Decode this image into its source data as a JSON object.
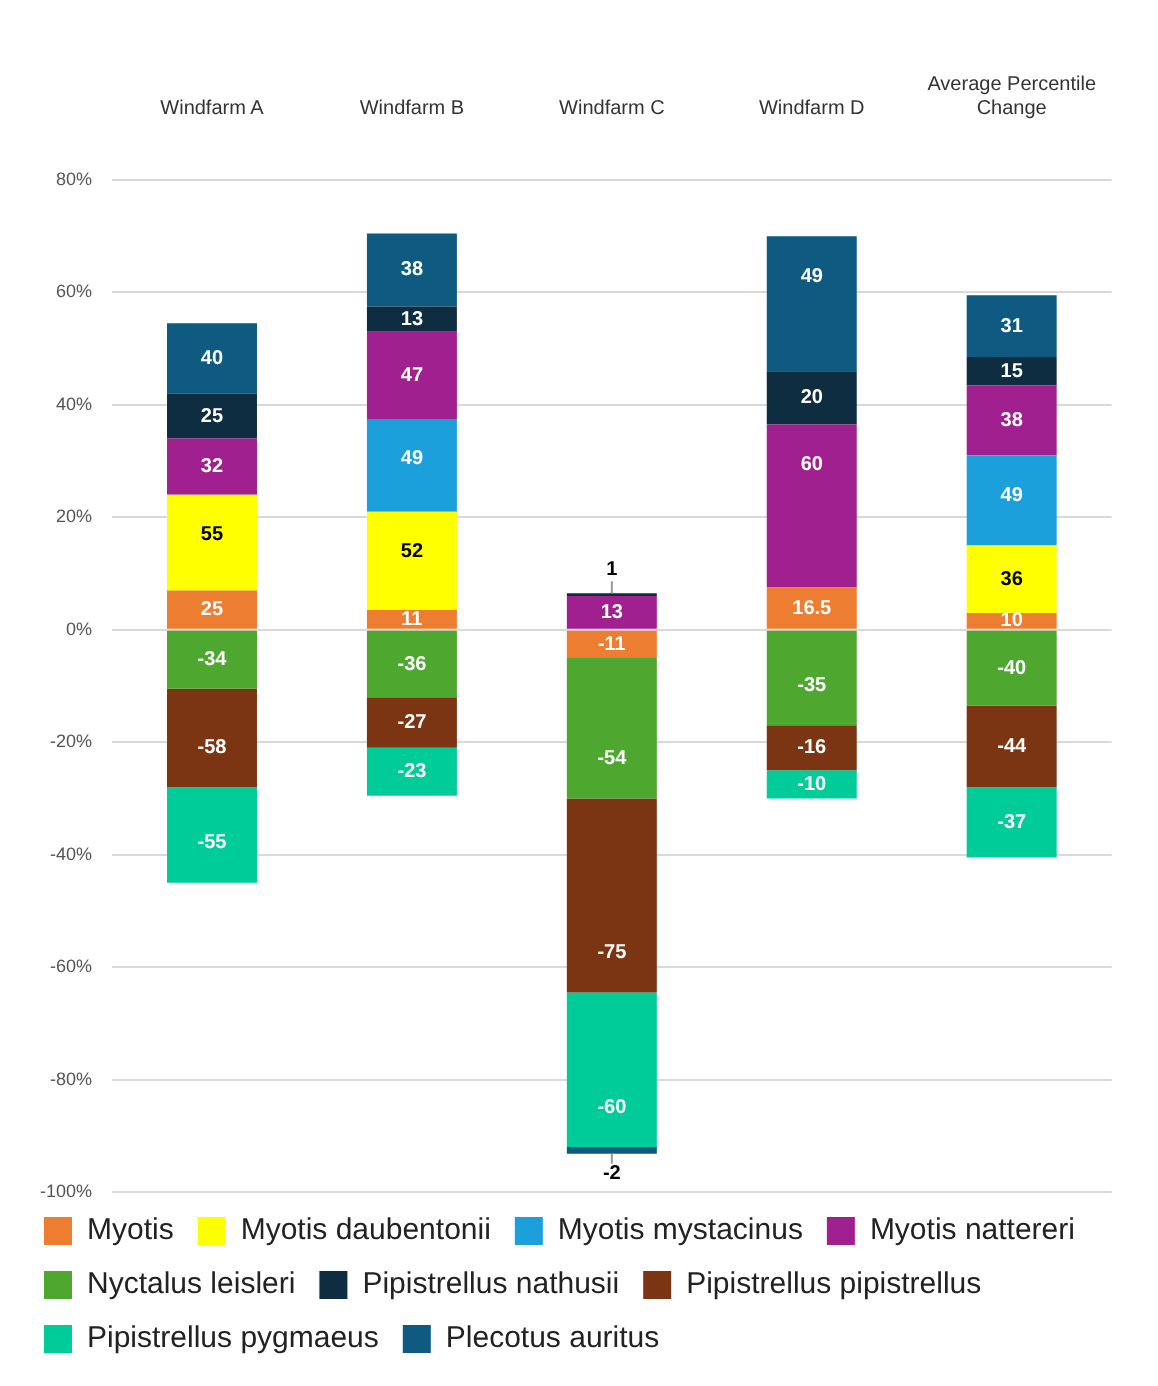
{
  "chart_data": {
    "type": "bar",
    "stacked": true,
    "categories": [
      "Windfarm A",
      "Windfarm B",
      "Windfarm C",
      "Windfarm D",
      "Average Percentile Change"
    ],
    "ylim": [
      -100,
      80
    ],
    "yticks": [
      {
        "value": -100,
        "label": "-100%"
      },
      {
        "value": -80,
        "label": "-80%"
      },
      {
        "value": -60,
        "label": "-60%"
      },
      {
        "value": -40,
        "label": "-40%"
      },
      {
        "value": -20,
        "label": "-20%"
      },
      {
        "value": 0,
        "label": "0%"
      },
      {
        "value": 20,
        "label": "20%"
      },
      {
        "value": 40,
        "label": "40%"
      },
      {
        "value": 60,
        "label": "60%"
      },
      {
        "value": 80,
        "label": "80%"
      }
    ],
    "grid": "y",
    "legend": "bottom",
    "series": [
      {
        "name": "Myotis",
        "color": "#ed7d31",
        "values": [
          7,
          3.5,
          -5,
          7.5,
          3
        ]
      },
      {
        "name": "Myotis daubentonii",
        "color": "#ffff00",
        "values": [
          17,
          17.5,
          null,
          null,
          12
        ]
      },
      {
        "name": "Myotis mystacinus",
        "color": "#1ca0dc",
        "values": [
          null,
          16.5,
          null,
          null,
          16
        ]
      },
      {
        "name": "Myotis nattereri",
        "color": "#a0208f",
        "values": [
          10,
          15.5,
          6,
          29,
          12.5
        ]
      },
      {
        "name": "Nyctalus leisleri",
        "color": "#4ea72e",
        "values": [
          -10.5,
          -12,
          -25,
          -17,
          -13.5
        ]
      },
      {
        "name": "Pipistrellus nathusii",
        "color": "#0e2d40",
        "values": [
          8,
          4.5,
          0.5,
          9.5,
          5
        ]
      },
      {
        "name": "Pipistrellus pipistrellus",
        "color": "#7b3512",
        "values": [
          -17.5,
          -9,
          -34.5,
          -8,
          -14.5
        ]
      },
      {
        "name": "Pipistrellus pygmaeus",
        "color": "#00cc99",
        "values": [
          -17,
          -8.5,
          -27.5,
          -5,
          -12.5
        ]
      },
      {
        "name": "Plecotus auritus",
        "color": "#0f5a80",
        "values": [
          12.5,
          13,
          -1.2,
          24,
          11
        ]
      }
    ],
    "annotations": [
      {
        "text": "25",
        "x": "Windfarm A",
        "y": 7
      },
      {
        "text": "55",
        "x": "Windfarm A",
        "y": 24
      },
      {
        "text": "32",
        "x": "Windfarm A",
        "y": 34
      },
      {
        "text": "25",
        "x": "Windfarm A",
        "y": 42
      },
      {
        "text": "40",
        "x": "Windfarm A",
        "y": 54.5
      },
      {
        "text": "-34",
        "x": "Windfarm A",
        "y": -10.5
      },
      {
        "text": "-58",
        "x": "Windfarm A",
        "y": -28
      },
      {
        "text": "-55",
        "x": "Windfarm A",
        "y": -45
      },
      {
        "text": "11",
        "x": "Windfarm B",
        "y": 3.5
      },
      {
        "text": "52",
        "x": "Windfarm B",
        "y": 21
      },
      {
        "text": "49",
        "x": "Windfarm B",
        "y": 37.5
      },
      {
        "text": "47",
        "x": "Windfarm B",
        "y": 53
      },
      {
        "text": "13",
        "x": "Windfarm B",
        "y": 57.5
      },
      {
        "text": "38",
        "x": "Windfarm B",
        "y": 70.5
      },
      {
        "text": "-36",
        "x": "Windfarm B",
        "y": -12
      },
      {
        "text": "-27",
        "x": "Windfarm B",
        "y": -21
      },
      {
        "text": "-23",
        "x": "Windfarm B",
        "y": -29.5
      },
      {
        "text": "13",
        "x": "Windfarm C",
        "y": 6
      },
      {
        "text": "1",
        "x": "Windfarm C",
        "y": 6.5
      },
      {
        "text": "-11",
        "x": "Windfarm C",
        "y": -5
      },
      {
        "text": "-54",
        "x": "Windfarm C",
        "y": -30
      },
      {
        "text": "-75",
        "x": "Windfarm C",
        "y": -64.5
      },
      {
        "text": "-60",
        "x": "Windfarm C",
        "y": -92
      },
      {
        "text": "-2",
        "x": "Windfarm C",
        "y": -93.2
      },
      {
        "text": "16.5",
        "x": "Windfarm D",
        "y": 7.5
      },
      {
        "text": "60",
        "x": "Windfarm D",
        "y": 36.5
      },
      {
        "text": "20",
        "x": "Windfarm D",
        "y": 46
      },
      {
        "text": "49",
        "x": "Windfarm D",
        "y": 70
      },
      {
        "text": "-35",
        "x": "Windfarm D",
        "y": -17
      },
      {
        "text": "-16",
        "x": "Windfarm D",
        "y": -25
      },
      {
        "text": "-10",
        "x": "Windfarm D",
        "y": -30
      },
      {
        "text": "10",
        "x": "Average Percentile Change",
        "y": 3
      },
      {
        "text": "36",
        "x": "Average Percentile Change",
        "y": 15
      },
      {
        "text": "49",
        "x": "Average Percentile Change",
        "y": 31
      },
      {
        "text": "38",
        "x": "Average Percentile Change",
        "y": 43.5
      },
      {
        "text": "15",
        "x": "Average Percentile Change",
        "y": 48.5
      },
      {
        "text": "31",
        "x": "Average Percentile Change",
        "y": 59.5
      },
      {
        "text": "-40",
        "x": "Average Percentile Change",
        "y": -13.5
      },
      {
        "text": "-44",
        "x": "Average Percentile Change",
        "y": -28
      },
      {
        "text": "-37",
        "x": "Average Percentile Change",
        "y": -40.5
      }
    ]
  }
}
